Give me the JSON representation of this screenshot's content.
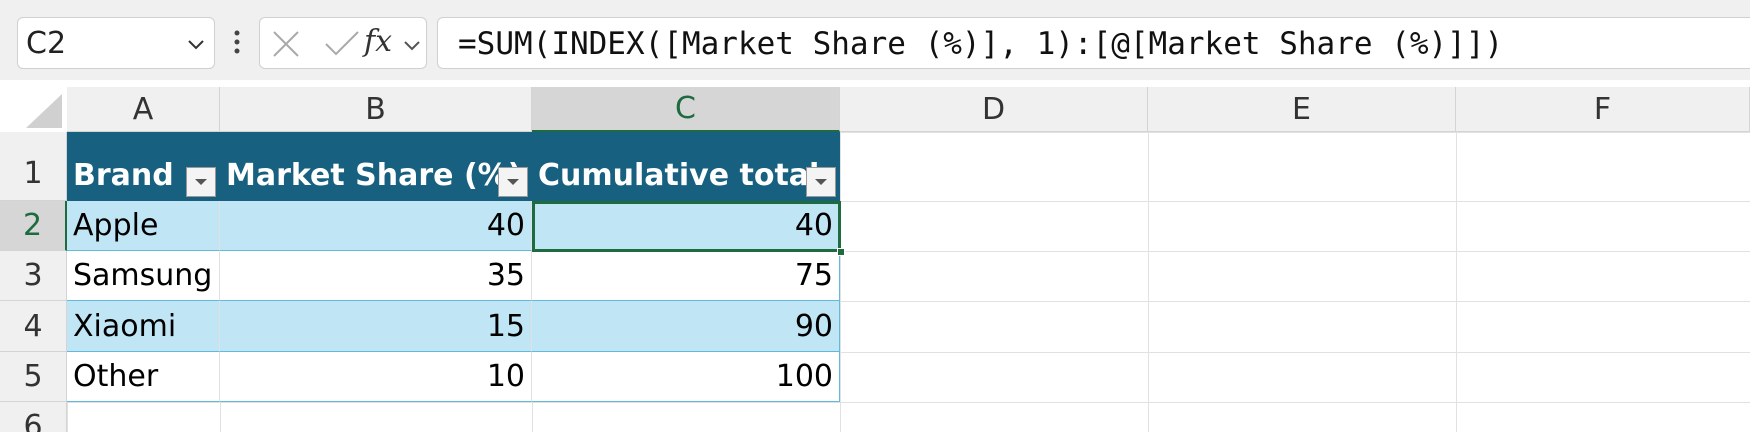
{
  "name_box": "C2",
  "function_icon": "fx",
  "formula": "=SUM(INDEX([Market Share (%)], 1):[@[Market Share (%)]])",
  "columns": [
    "A",
    "B",
    "C",
    "D",
    "E",
    "F"
  ],
  "rows": [
    "1",
    "2",
    "3",
    "4",
    "5",
    "6"
  ],
  "table": {
    "header": [
      "Brand",
      "Market Share (%)",
      "Cumulative total"
    ],
    "rows": [
      [
        "Apple",
        40,
        40
      ],
      [
        "Samsung",
        35,
        75
      ],
      [
        "Xiaomi",
        15,
        90
      ],
      [
        "Other",
        10,
        100
      ]
    ]
  }
}
